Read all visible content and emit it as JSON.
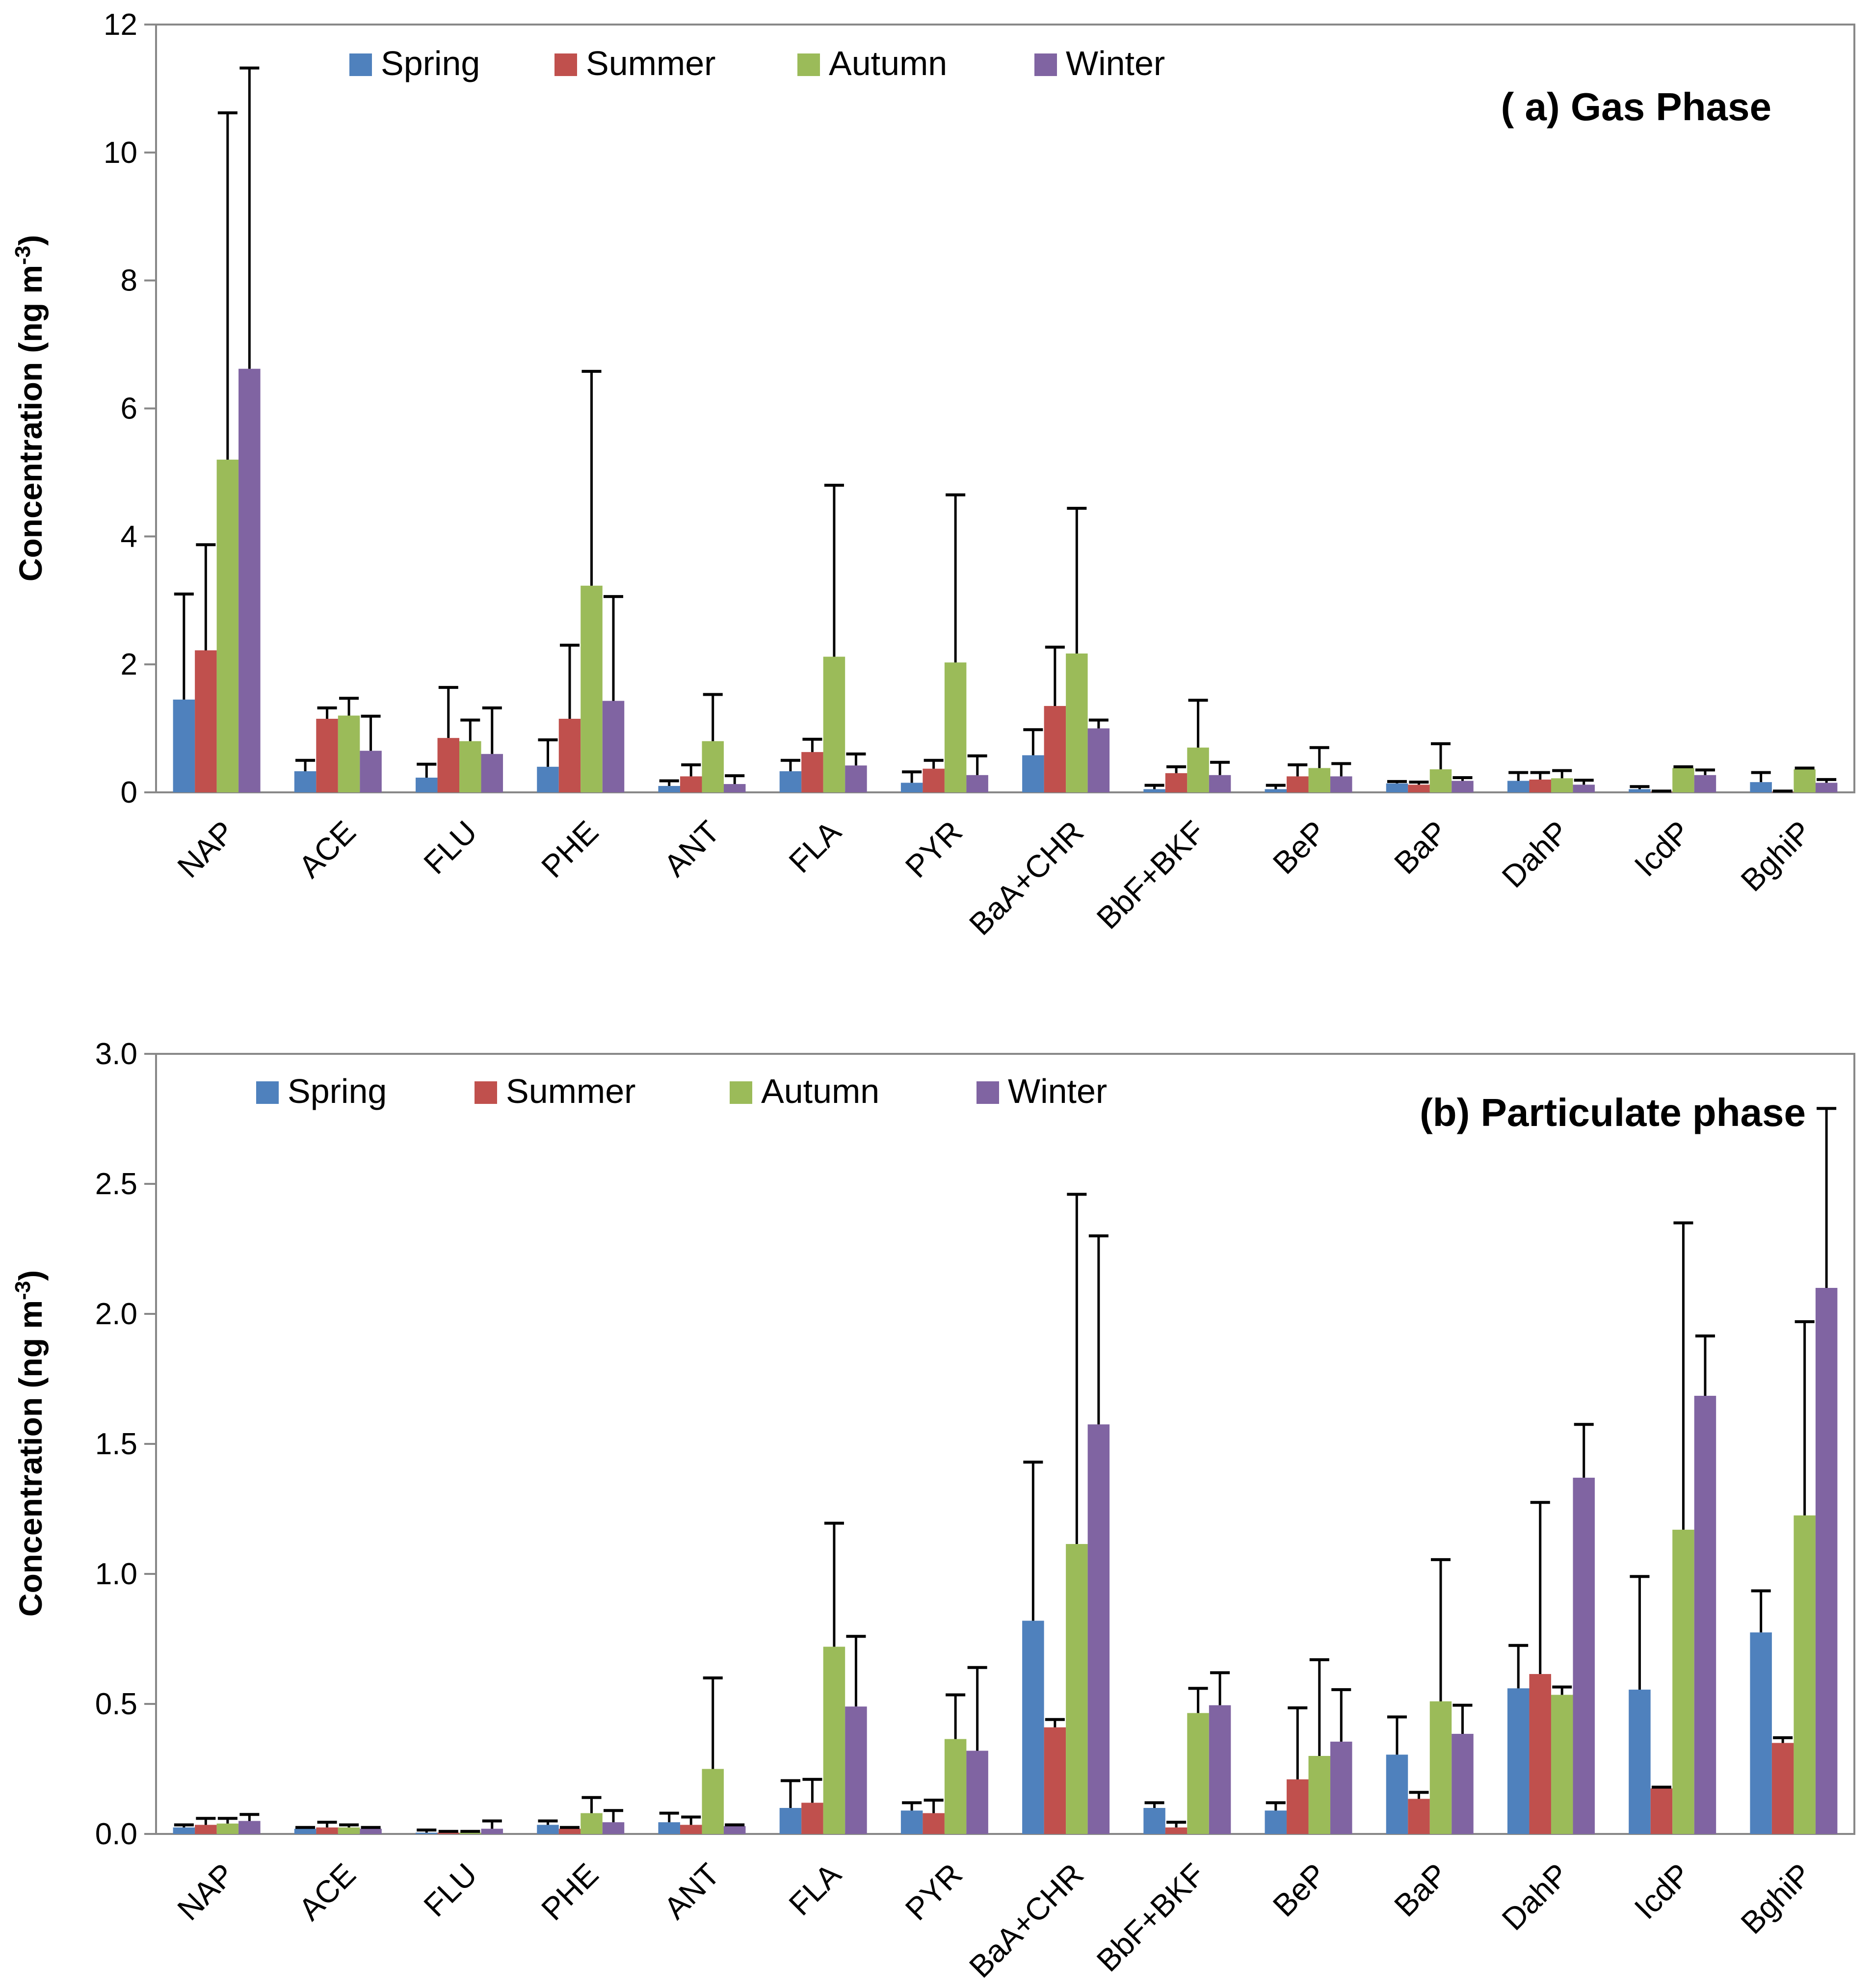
{
  "chart_data": [
    {
      "type": "bar",
      "title": "( a) Gas Phase",
      "ylabel": "Concentration (ng m",
      "ylabel_sup": "-3",
      "ylabel_end": ")",
      "ylim": [
        0,
        12
      ],
      "yticks": [
        0,
        2,
        4,
        6,
        8,
        10,
        12
      ],
      "ytick_labels": [
        "0",
        "2",
        "4",
        "6",
        "8",
        "10",
        "12"
      ],
      "grid": false,
      "legend_position": "top",
      "categories": [
        "NAP",
        "ACE",
        "FLU",
        "PHE",
        "ANT",
        "FLA",
        "PYR",
        "BaA+CHR",
        "BbF+BKF",
        "BeP",
        "BaP",
        "DahP",
        "IcdP",
        "BghiP"
      ],
      "series": [
        {
          "name": "Spring",
          "color": "#4F81BD",
          "values": [
            1.45,
            0.33,
            0.23,
            0.4,
            0.1,
            0.33,
            0.15,
            0.58,
            0.05,
            0.05,
            0.14,
            0.18,
            0.05,
            0.16
          ],
          "errors": [
            1.65,
            0.17,
            0.21,
            0.42,
            0.08,
            0.17,
            0.17,
            0.4,
            0.06,
            0.06,
            0.03,
            0.13,
            0.04,
            0.15
          ]
        },
        {
          "name": "Summer",
          "color": "#C0504D",
          "values": [
            2.22,
            1.15,
            0.85,
            1.15,
            0.25,
            0.63,
            0.37,
            1.35,
            0.3,
            0.25,
            0.12,
            0.2,
            0.01,
            0.01
          ],
          "errors": [
            1.65,
            0.17,
            0.79,
            1.15,
            0.18,
            0.2,
            0.13,
            0.92,
            0.1,
            0.18,
            0.04,
            0.11,
            0.01,
            0.01
          ]
        },
        {
          "name": "Autumn",
          "color": "#9BBB59",
          "values": [
            5.2,
            1.2,
            0.8,
            3.23,
            0.8,
            2.12,
            2.03,
            2.17,
            0.7,
            0.38,
            0.36,
            0.22,
            0.38,
            0.36
          ],
          "errors": [
            5.42,
            0.27,
            0.33,
            3.35,
            0.73,
            2.68,
            2.62,
            2.27,
            0.74,
            0.32,
            0.4,
            0.12,
            0.02,
            0.02
          ]
        },
        {
          "name": "Winter",
          "color": "#8064A2",
          "values": [
            6.62,
            0.65,
            0.6,
            1.43,
            0.13,
            0.42,
            0.27,
            1.0,
            0.27,
            0.25,
            0.18,
            0.12,
            0.27,
            0.15
          ],
          "errors": [
            4.7,
            0.54,
            0.72,
            1.63,
            0.13,
            0.18,
            0.3,
            0.13,
            0.2,
            0.2,
            0.05,
            0.07,
            0.08,
            0.05
          ]
        }
      ]
    },
    {
      "type": "bar",
      "title": "(b) Particulate phase",
      "ylabel": "Concentration (ng m",
      "ylabel_sup": "-3",
      "ylabel_end": ")",
      "ylim": [
        0,
        3
      ],
      "yticks": [
        0,
        0.5,
        1,
        1.5,
        2,
        2.5,
        3
      ],
      "ytick_labels": [
        "0.0",
        "0.5",
        "1.0",
        "1.5",
        "2.0",
        "2.5",
        "3.0"
      ],
      "grid": false,
      "legend_position": "top",
      "categories": [
        "NAP",
        "ACE",
        "FLU",
        "PHE",
        "ANT",
        "FLA",
        "PYR",
        "BaA+CHR",
        "BbF+BKF",
        "BeP",
        "BaP",
        "DahP",
        "IcdP",
        "BghiP"
      ],
      "series": [
        {
          "name": "Spring",
          "color": "#4F81BD",
          "values": [
            0.025,
            0.02,
            0.005,
            0.035,
            0.045,
            0.1,
            0.09,
            0.82,
            0.1,
            0.09,
            0.305,
            0.56,
            0.555,
            0.775
          ],
          "errors": [
            0.01,
            0.005,
            0.01,
            0.015,
            0.035,
            0.105,
            0.03,
            0.61,
            0.02,
            0.03,
            0.145,
            0.165,
            0.435,
            0.16
          ]
        },
        {
          "name": "Summer",
          "color": "#C0504D",
          "values": [
            0.035,
            0.025,
            0.005,
            0.02,
            0.035,
            0.12,
            0.08,
            0.41,
            0.025,
            0.21,
            0.135,
            0.615,
            0.175,
            0.35
          ],
          "errors": [
            0.025,
            0.02,
            0.005,
            0.005,
            0.03,
            0.09,
            0.05,
            0.03,
            0.02,
            0.275,
            0.025,
            0.66,
            0.005,
            0.02
          ]
        },
        {
          "name": "Autumn",
          "color": "#9BBB59",
          "values": [
            0.04,
            0.025,
            0.005,
            0.08,
            0.25,
            0.72,
            0.365,
            1.115,
            0.465,
            0.3,
            0.51,
            0.535,
            1.17,
            1.225
          ],
          "errors": [
            0.02,
            0.01,
            0.005,
            0.06,
            0.35,
            0.475,
            0.17,
            1.345,
            0.095,
            0.37,
            0.545,
            0.03,
            1.18,
            0.745
          ]
        },
        {
          "name": "Winter",
          "color": "#8064A2",
          "values": [
            0.05,
            0.02,
            0.02,
            0.045,
            0.03,
            0.49,
            0.32,
            1.575,
            0.495,
            0.355,
            0.385,
            1.37,
            1.685,
            2.1
          ],
          "errors": [
            0.025,
            0.005,
            0.03,
            0.045,
            0.005,
            0.27,
            0.32,
            0.725,
            0.125,
            0.2,
            0.11,
            0.205,
            0.23,
            0.69
          ]
        }
      ]
    }
  ]
}
